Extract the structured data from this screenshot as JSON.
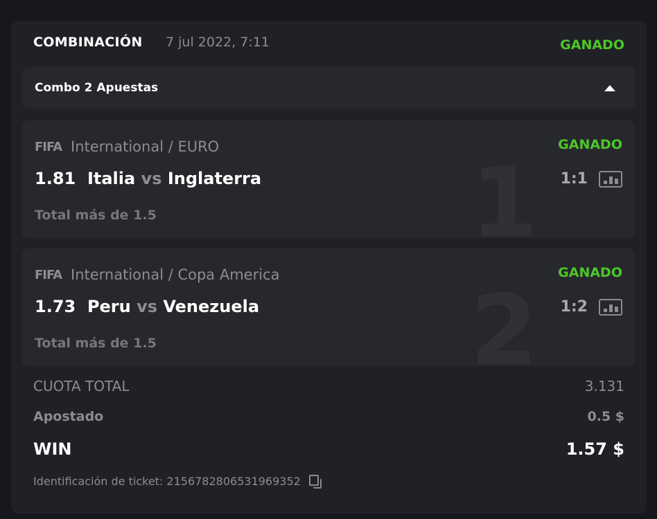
{
  "header": {
    "title": "COMBINACIÓN",
    "date": "7 jul 2022, 7:11",
    "status": "GANADO"
  },
  "combo": {
    "label": "Combo 2 Apuestas"
  },
  "bets": [
    {
      "index": "1",
      "logo": "FIFA",
      "league": "International / EURO",
      "status": "GANADO",
      "odds": "1.81",
      "home": "Italia",
      "vs": "vs",
      "away": "Inglaterra",
      "score": "1:1",
      "market": "Total más de 1.5"
    },
    {
      "index": "2",
      "logo": "FIFA",
      "league": "International / Copa America",
      "status": "GANADO",
      "odds": "1.73",
      "home": "Peru",
      "vs": "vs",
      "away": "Venezuela",
      "score": "1:2",
      "market": "Total más de 1.5"
    }
  ],
  "summary": {
    "total_odds_label": "CUOTA TOTAL",
    "total_odds": "3.131",
    "staked_label": "Apostado",
    "staked": "0.5 $",
    "win_label": "WIN",
    "win": "1.57 $"
  },
  "ticket": {
    "label": "Identificación de ticket: 2156782806531969352"
  },
  "colors": {
    "win_green": "#4ec62c",
    "card": "#202125",
    "panel": "#27282c"
  }
}
